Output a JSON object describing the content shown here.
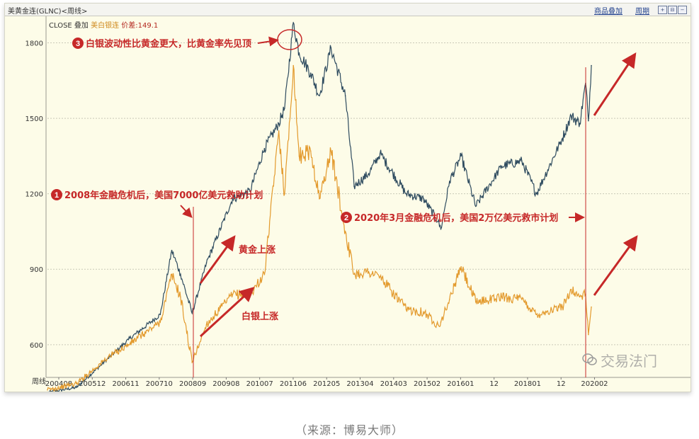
{
  "header": {
    "window_title": "美黄金连(GLNC)<周线>",
    "overlay_button": "商品叠加",
    "period_button": "周期",
    "legend_close": "CLOSE",
    "legend_overlay": "叠加",
    "legend_silver": "美白银连",
    "legend_spread": "价差:149.1",
    "period_axis_label": "周线"
  },
  "annotations": {
    "a1": "2008年金融危机后，美国7000亿美元救助计划",
    "a2": "2020年3月金融危机后，美国2万亿美元救市计划",
    "a3": "白银波动性比黄金更大，比黄金率先见顶",
    "gold_up": "黄金上涨",
    "silver_up": "白银上涨",
    "n1": "1",
    "n2": "2",
    "n3": "3"
  },
  "watermark": "交易法门",
  "source": "（来源：博易大师）",
  "colors": {
    "gold_line": "#2e4b5f",
    "silver_line": "#e39a2d",
    "annotation": "#c62828",
    "background": "#fdfce8"
  },
  "chart_data": {
    "type": "line",
    "title": "",
    "xlabel": "",
    "ylabel": "",
    "ylim": [
      470,
      1900
    ],
    "yticks": [
      600,
      900,
      1200,
      1500,
      1800
    ],
    "xticks": [
      "200408",
      "200512",
      "200611",
      "200710",
      "200809",
      "200908",
      "201007",
      "201106",
      "201205",
      "201304",
      "201403",
      "201502",
      "201601",
      "12",
      "201801",
      "12",
      "202002"
    ],
    "x": [
      "2004-08",
      "2005-06",
      "2006-05",
      "2006-12",
      "2007-11",
      "2008-03",
      "2008-06",
      "2008-10",
      "2009-03",
      "2009-12",
      "2010-06",
      "2010-11",
      "2011-04",
      "2011-06",
      "2011-09",
      "2011-11",
      "2012-03",
      "2012-06",
      "2012-10",
      "2013-03",
      "2013-06",
      "2013-11",
      "2014-03",
      "2014-12",
      "2015-06",
      "2015-11",
      "2015-12",
      "2016-03",
      "2016-07",
      "2016-12",
      "2017-09",
      "2018-04",
      "2018-09",
      "2019-06",
      "2019-09",
      "2019-12",
      "2020-02",
      "2020-03",
      "2020-04"
    ],
    "series": [
      {
        "name": "CLOSE",
        "values": [
          410,
          430,
          545,
          620,
          720,
          975,
          880,
          725,
          925,
          1180,
          1210,
          1380,
          1480,
          1540,
          1880,
          1760,
          1680,
          1590,
          1780,
          1590,
          1230,
          1280,
          1360,
          1200,
          1180,
          1090,
          1060,
          1250,
          1350,
          1150,
          1310,
          1330,
          1200,
          1420,
          1510,
          1480,
          1640,
          1490,
          1710
        ]
      },
      {
        "name": "美白银连",
        "values": [
          420,
          445,
          550,
          600,
          690,
          880,
          790,
          530,
          680,
          800,
          800,
          880,
          1450,
          1200,
          1710,
          1350,
          1370,
          1180,
          1370,
          1050,
          880,
          890,
          870,
          740,
          730,
          680,
          690,
          780,
          910,
          770,
          790,
          780,
          720,
          750,
          820,
          790,
          800,
          640,
          750
        ]
      }
    ]
  }
}
